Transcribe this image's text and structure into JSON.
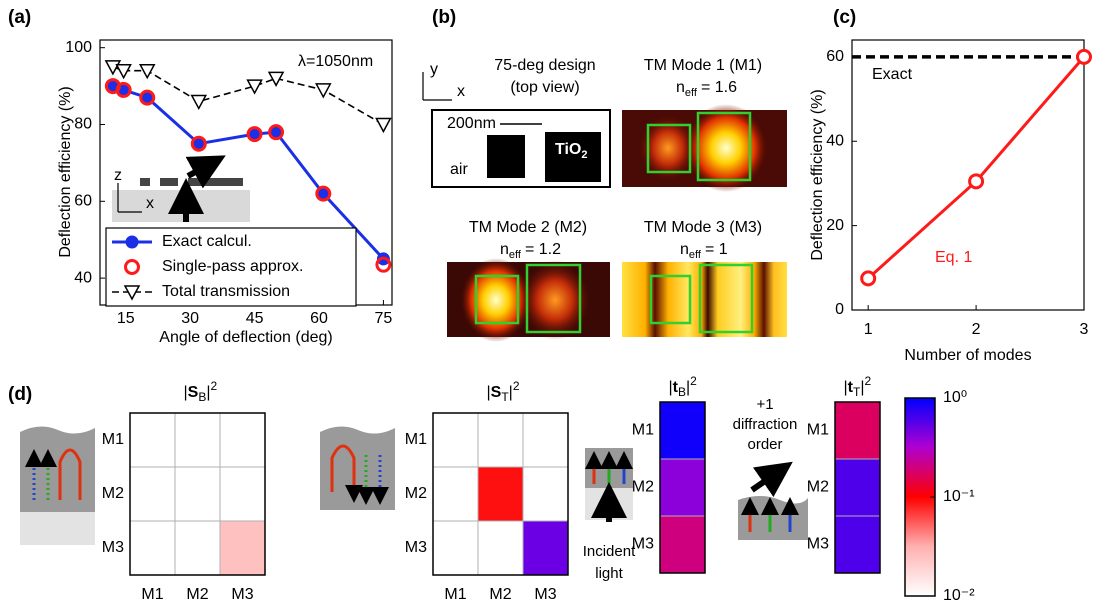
{
  "chart_data": [
    {
      "type": "line",
      "panel": "(a)",
      "xlabel": "Angle of deflection (deg)",
      "ylabel": "Deflection efficiency (%)",
      "xlim": [
        9,
        77
      ],
      "ylim": [
        33,
        102
      ],
      "xticks": [
        15,
        30,
        45,
        60,
        75
      ],
      "yticks": [
        40,
        60,
        80,
        100
      ],
      "x": [
        12,
        14.5,
        20,
        32,
        45,
        50,
        61,
        75
      ],
      "series": [
        {
          "name": "Exact calcul.",
          "color": "#1a2fe6",
          "marker": "circle",
          "linestyle": "solid",
          "values": [
            90,
            89,
            87,
            75,
            77.5,
            78,
            62,
            45
          ]
        },
        {
          "name": "Single-pass approx.",
          "color": "#ff1a1a",
          "marker": "open-circle",
          "linestyle": "none",
          "values": [
            90,
            89,
            87,
            75,
            77.5,
            78,
            62,
            43.5
          ]
        },
        {
          "name": "Total transmission",
          "color": "#000000",
          "marker": "open-triangle-down",
          "linestyle": "dashed",
          "values": [
            95,
            94,
            94,
            86,
            90,
            92,
            89,
            80
          ]
        }
      ],
      "legend": "lower left",
      "annotation": "λ=1050nm",
      "inset_axes": [
        "z",
        "x"
      ]
    },
    {
      "type": "line",
      "panel": "(c)",
      "xlabel": "Number of modes",
      "ylabel": "Deflection efficiency (%)",
      "xlim": [
        0.85,
        3
      ],
      "ylim": [
        0,
        64
      ],
      "xticks": [
        1,
        2,
        3
      ],
      "yticks": [
        0,
        20,
        40,
        60
      ],
      "x": [
        1,
        2,
        3
      ],
      "series": [
        {
          "name": "Eq. 1",
          "color": "#ff1a1a",
          "marker": "open-circle",
          "linestyle": "solid",
          "values": [
            7.5,
            30.5,
            60
          ]
        }
      ],
      "reference": {
        "label": "Exact",
        "value": 60,
        "color": "#000000"
      }
    },
    {
      "type": "heatmap",
      "panel": "(d)",
      "title": [
        "|",
        "S",
        "B",
        "|",
        "2"
      ],
      "rows": [
        "M1",
        "M2",
        "M3"
      ],
      "cols": [
        "M1",
        "M2",
        "M3"
      ],
      "values": [
        [
          0.01,
          0.01,
          0.01
        ],
        [
          0.01,
          0.01,
          0.01
        ],
        [
          0.01,
          0.01,
          0.025
        ]
      ]
    },
    {
      "type": "heatmap",
      "title": [
        "|",
        "S",
        "T",
        "|",
        "2"
      ],
      "rows": [
        "M1",
        "M2",
        "M3"
      ],
      "cols": [
        "M1",
        "M2",
        "M3"
      ],
      "values": [
        [
          0.01,
          0.01,
          0.01
        ],
        [
          0.01,
          0.09,
          0.01
        ],
        [
          0.01,
          0.01,
          0.5
        ]
      ]
    },
    {
      "type": "heatmap",
      "title": [
        "|",
        "t",
        "B",
        "|",
        "2"
      ],
      "rows": [
        "M1",
        "M2",
        "M3"
      ],
      "values": [
        [
          0.9
        ],
        [
          0.4
        ],
        [
          0.2
        ]
      ]
    },
    {
      "type": "heatmap",
      "title": [
        "|",
        "t",
        "T",
        "|",
        "2"
      ],
      "rows": [
        "M1",
        "M2",
        "M3"
      ],
      "values": [
        [
          0.17
        ],
        [
          0.6
        ],
        [
          0.6
        ]
      ]
    }
  ],
  "colorbar": {
    "lim": [
      0.01,
      1
    ],
    "scale": "log",
    "colormap": [
      "#ffffff",
      "#ffb0b0",
      "#ff0000",
      "#b000d0",
      "#0000ff"
    ],
    "ticks": [
      {
        "value": 1,
        "label": "10⁰"
      },
      {
        "value": 0.1,
        "label": "10⁻¹"
      },
      {
        "value": 0.01,
        "label": "10⁻²"
      }
    ]
  },
  "panel_b": {
    "label": "(b)",
    "axis_y": "y",
    "axis_x": "x",
    "design_title": "75-deg design",
    "design_subtitle": "(top view)",
    "scale_bar": "200nm",
    "air": "air",
    "material": [
      "TiO",
      "2"
    ],
    "modes": [
      {
        "title": "TM Mode 1 (M1)",
        "n": "n",
        "sub": "eff",
        "value": "= 1.6"
      },
      {
        "title": "TM Mode 2 (M2)",
        "n": "n",
        "sub": "eff",
        "value": "= 1.2"
      },
      {
        "title": "TM Mode 3 (M3)",
        "n": "n",
        "sub": "eff",
        "value": "= 1"
      }
    ]
  },
  "panel_d_notes": {
    "order": [
      "+1",
      "diffraction",
      "order"
    ],
    "incident": [
      "Incident",
      "light"
    ]
  }
}
